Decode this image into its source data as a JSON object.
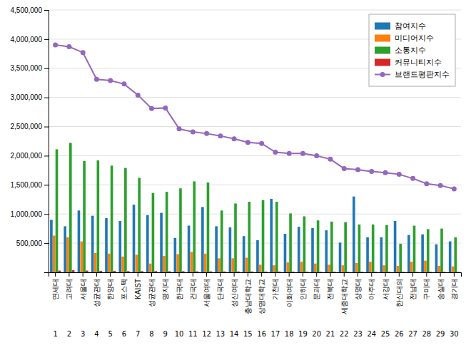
{
  "chart_data": {
    "type": "bar",
    "categories": [
      "연세대",
      "고려대",
      "서울대",
      "성균관대",
      "한양대",
      "포스텍",
      "KAIST",
      "성균관대",
      "명지대",
      "한국대",
      "건국대",
      "서울여대",
      "단국대",
      "성신여대",
      "충남대학교",
      "상명대학교",
      "가천대",
      "이화여대",
      "인하대",
      "문과대",
      "전북대",
      "세종대학교",
      "상명대",
      "아주대",
      "서강대",
      "한신대의",
      "전남대",
      "구미대",
      "숭실대",
      "경기대"
    ],
    "ranks": [
      1,
      2,
      3,
      4,
      5,
      6,
      7,
      8,
      9,
      10,
      11,
      12,
      13,
      14,
      15,
      16,
      17,
      18,
      19,
      20,
      21,
      22,
      23,
      24,
      25,
      26,
      27,
      28,
      29,
      30
    ],
    "series": [
      {
        "name": "참여지수",
        "type": "bar",
        "values": [
          900000,
          790000,
          1060000,
          970000,
          930000,
          880000,
          1160000,
          980000,
          1020000,
          590000,
          800000,
          1120000,
          790000,
          770000,
          620000,
          550000,
          1260000,
          660000,
          780000,
          760000,
          720000,
          510000,
          1300000,
          600000,
          600000,
          880000,
          640000,
          650000,
          480000,
          530000
        ]
      },
      {
        "name": "미디어지수",
        "type": "bar",
        "values": [
          630000,
          600000,
          530000,
          330000,
          320000,
          270000,
          300000,
          150000,
          280000,
          310000,
          350000,
          320000,
          240000,
          240000,
          250000,
          130000,
          120000,
          170000,
          180000,
          150000,
          130000,
          120000,
          160000,
          180000,
          120000,
          110000,
          180000,
          200000,
          110000,
          100000
        ]
      },
      {
        "name": "소통지수",
        "type": "bar",
        "values": [
          2110000,
          2220000,
          1910000,
          1920000,
          1830000,
          1790000,
          1620000,
          1360000,
          1380000,
          1440000,
          1560000,
          1540000,
          1060000,
          1180000,
          1210000,
          1240000,
          1210000,
          1010000,
          960000,
          890000,
          870000,
          860000,
          820000,
          820000,
          810000,
          490000,
          800000,
          740000,
          750000,
          600000
        ]
      },
      {
        "name": "커뮤니티지수",
        "type": "bar",
        "values": [
          30000,
          35000,
          30000,
          25000,
          25000,
          20000,
          20000,
          20000,
          18000,
          18000,
          16000,
          16000,
          14000,
          14000,
          14000,
          12000,
          12000,
          10000,
          10000,
          9000,
          9000,
          8000,
          8000,
          8000,
          8000,
          7000,
          7000,
          7000,
          7000,
          7000
        ]
      },
      {
        "name": "브랜드평판지수",
        "type": "line",
        "marker": "circle",
        "values": [
          3900000,
          3870000,
          3770000,
          3310000,
          3290000,
          3230000,
          3040000,
          2810000,
          2820000,
          2460000,
          2410000,
          2380000,
          2340000,
          2290000,
          2230000,
          2210000,
          2060000,
          2040000,
          2040000,
          2000000,
          1940000,
          1780000,
          1760000,
          1730000,
          1710000,
          1680000,
          1610000,
          1520000,
          1490000,
          1430000
        ]
      }
    ],
    "ylim": [
      0,
      4500000
    ],
    "yticks": [
      {
        "value": 500000,
        "label": "500,000"
      },
      {
        "value": 1000000,
        "label": "1,000,000"
      },
      {
        "value": 1500000,
        "label": "1,500,000"
      },
      {
        "value": 2000000,
        "label": "2,000,000"
      },
      {
        "value": 2500000,
        "label": "2,500,000"
      },
      {
        "value": 3000000,
        "label": "3,000,000"
      },
      {
        "value": 3500000,
        "label": "3,500,000"
      },
      {
        "value": 4000000,
        "label": "4,000,000"
      },
      {
        "value": 4500000,
        "label": "4,500,000"
      }
    ],
    "grid": true,
    "legend": "upper right"
  }
}
